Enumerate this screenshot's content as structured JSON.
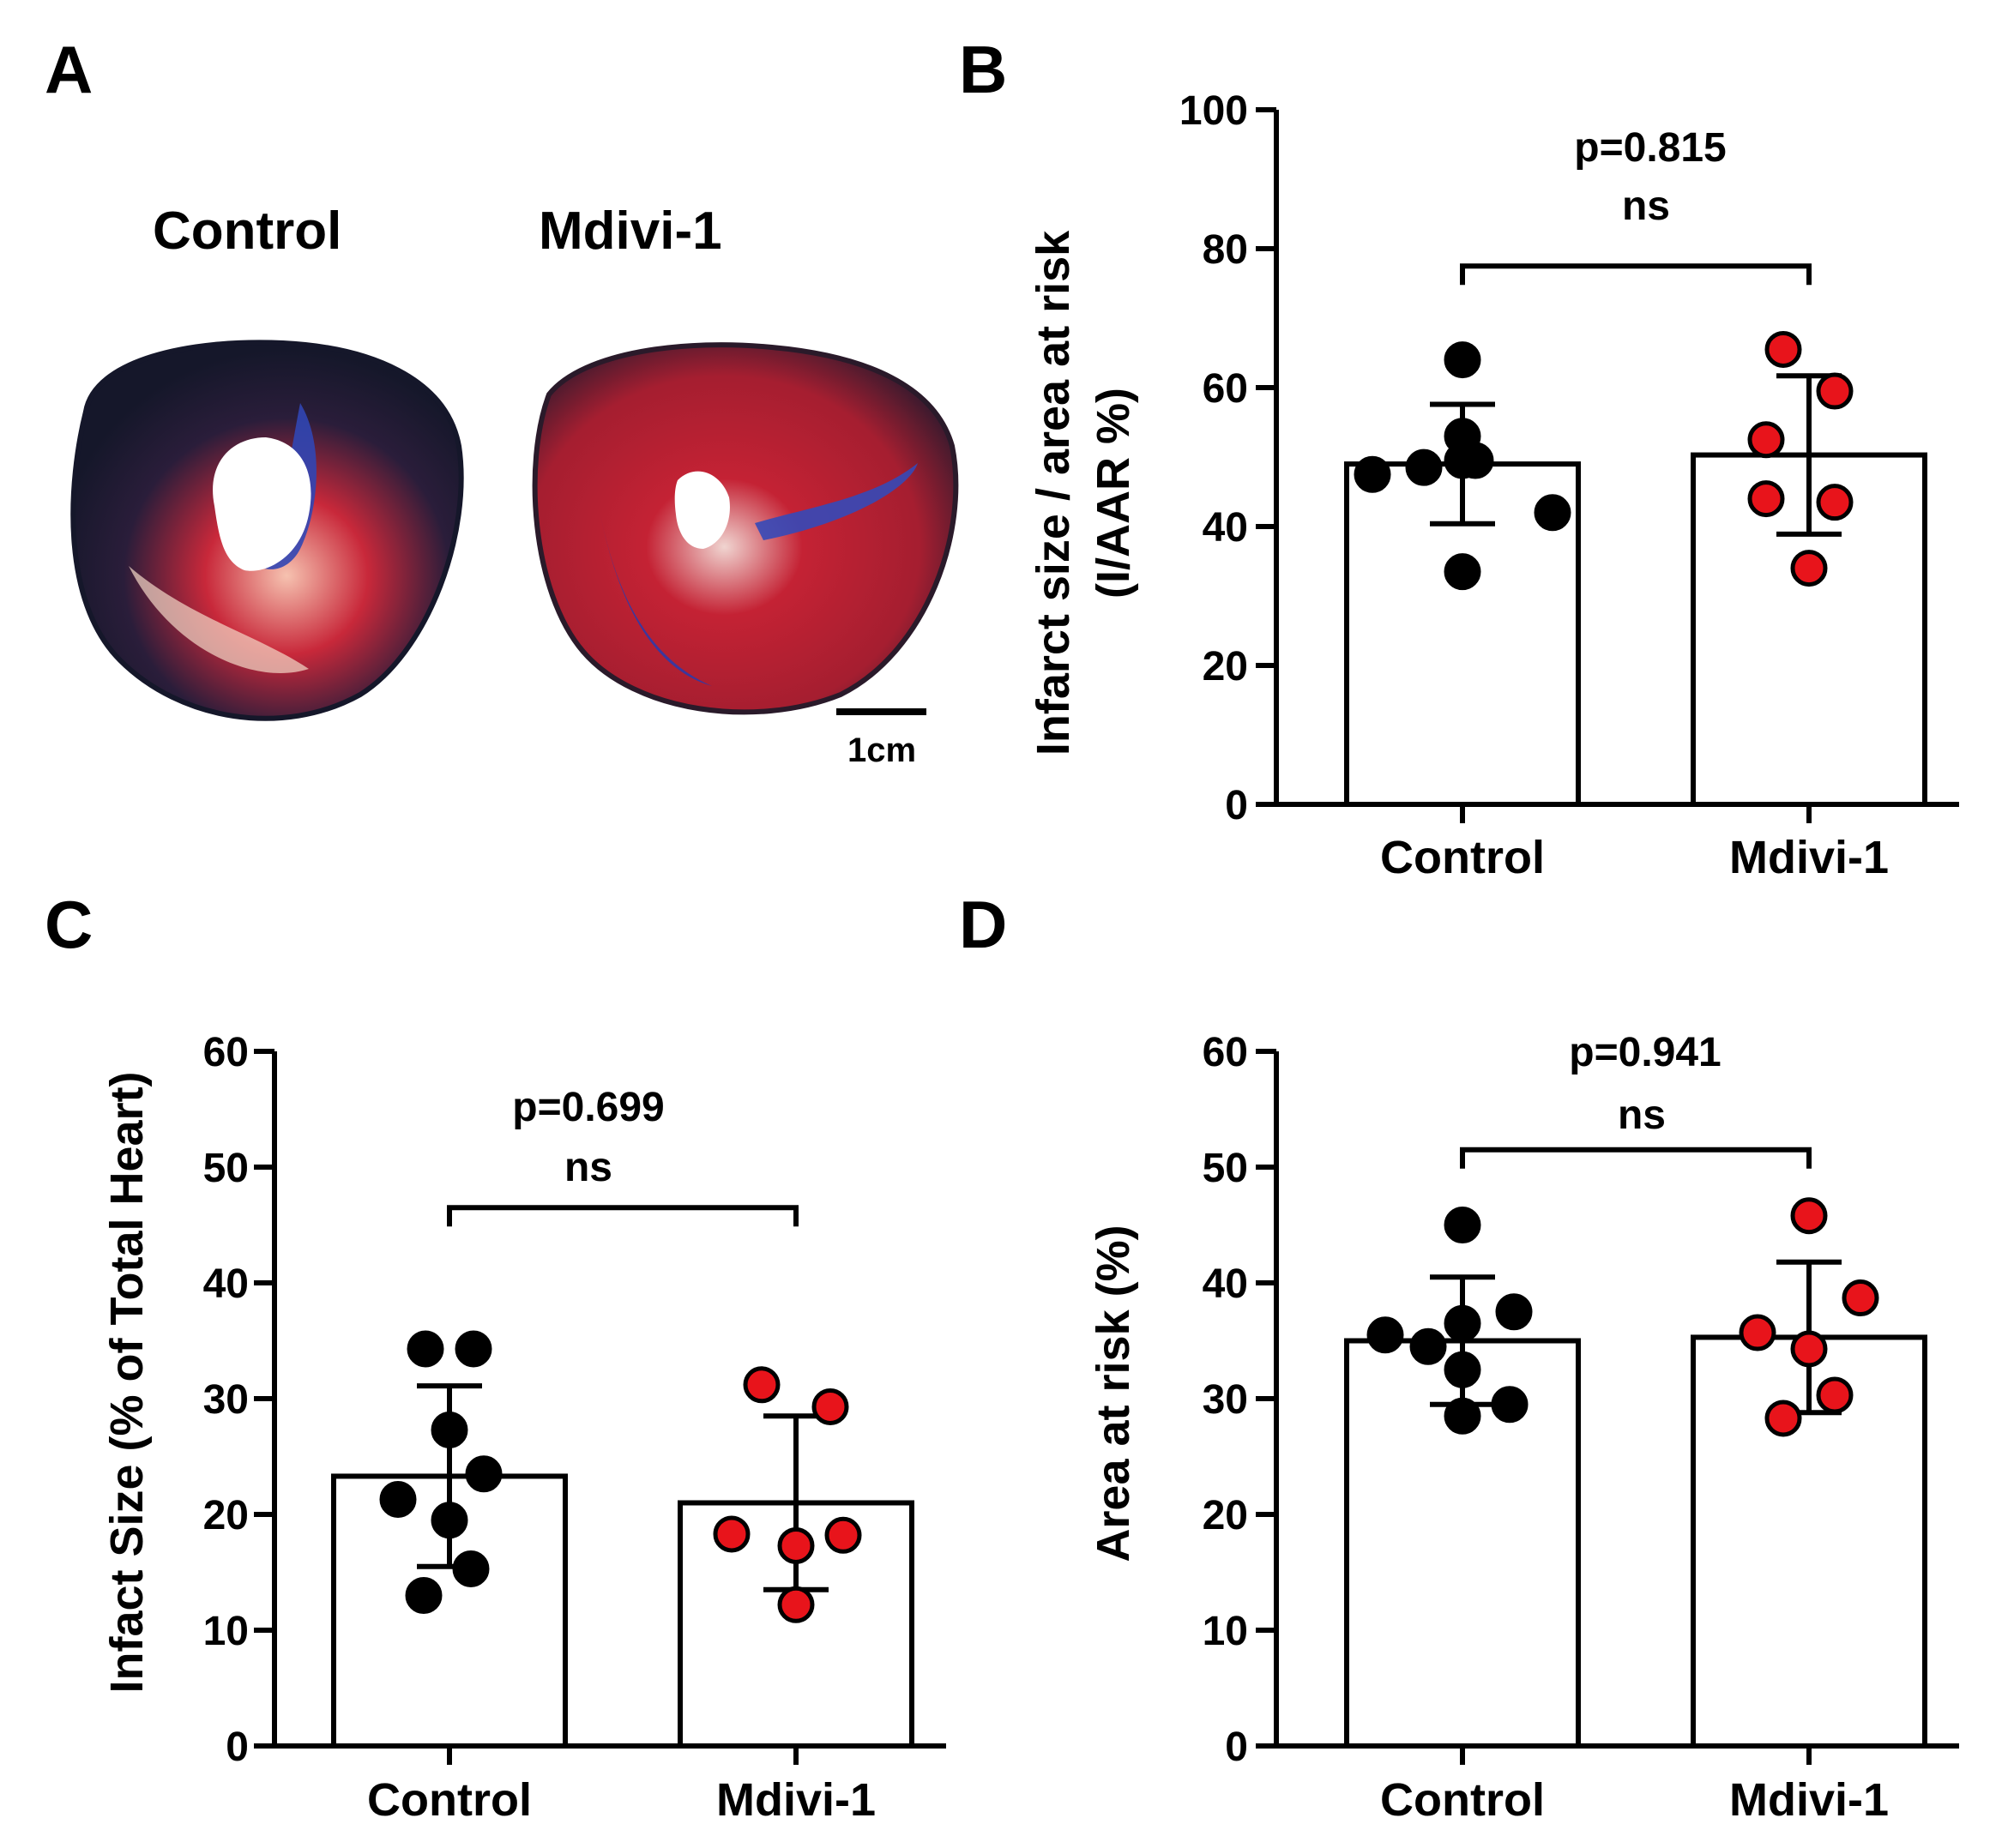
{
  "panels": {
    "a": {
      "letter": "A",
      "group_labels": [
        "Control",
        "Mdivi-1"
      ],
      "scale_bar_label": "1cm",
      "image_description_colors": {
        "dark": "#181a2e",
        "red": "#b8202f",
        "pink": "#f4b8a8",
        "blue": "#3549b8"
      }
    },
    "b": {
      "letter": "B"
    },
    "c": {
      "letter": "C"
    },
    "d": {
      "letter": "D"
    }
  },
  "colors": {
    "control_dot": "#000000",
    "mdivi_dot": "#e8141b",
    "axis": "#000000",
    "bar_fill": "#ffffff"
  },
  "chart_data": [
    {
      "id": "B",
      "type": "bar",
      "categories": [
        "Control",
        "Mdivi-1"
      ],
      "means": [
        49,
        50.3
      ],
      "sd": [
        8.6,
        11.4
      ],
      "points": [
        [
          64,
          53,
          49.5,
          47.5,
          48.5,
          49.5,
          42,
          33.5
        ],
        [
          65.5,
          59.5,
          52.5,
          44,
          43.5,
          34
        ]
      ],
      "ylabel_line1": "Infarct size / area at risk",
      "ylabel_line2": "(I/AAR %)",
      "ylim": [
        0,
        100
      ],
      "yticks": [
        0,
        20,
        40,
        60,
        80,
        100
      ],
      "pvalue": "p=0.815",
      "significance": "ns",
      "bracket_y": 77.5
    },
    {
      "id": "C",
      "type": "bar",
      "categories": [
        "Control",
        "Mdivi-1"
      ],
      "means": [
        23.3,
        21
      ],
      "sd": [
        7.8,
        7.5
      ],
      "points": [
        [
          34.3,
          34.3,
          27.3,
          23.5,
          21.3,
          19.5,
          15.3,
          13
        ],
        [
          31.2,
          29.3,
          18.3,
          18.2,
          17.3,
          12.2
        ]
      ],
      "ylabel_line1": "Infact Size (% of Total Heart)",
      "ylabel_line2": "",
      "ylim": [
        0,
        60
      ],
      "yticks": [
        0,
        10,
        20,
        30,
        40,
        50,
        60
      ],
      "pvalue": "p=0.699",
      "significance": "ns",
      "bracket_y": 46.5
    },
    {
      "id": "D",
      "type": "bar",
      "categories": [
        "Control",
        "Mdivi-1"
      ],
      "means": [
        35,
        35.3
      ],
      "sd": [
        5.5,
        6.5
      ],
      "points": [
        [
          45,
          37.5,
          36.5,
          35.5,
          34.5,
          32.5,
          29.5,
          28.5
        ],
        [
          45.8,
          38.7,
          35.7,
          34.3,
          30.3,
          28.3
        ]
      ],
      "ylabel_line1": "Area at risk (%)",
      "ylabel_line2": "",
      "ylim": [
        0,
        60
      ],
      "yticks": [
        0,
        10,
        20,
        30,
        40,
        50,
        60
      ],
      "pvalue": "p=0.941",
      "significance": "ns",
      "bracket_y": 51.5
    }
  ]
}
